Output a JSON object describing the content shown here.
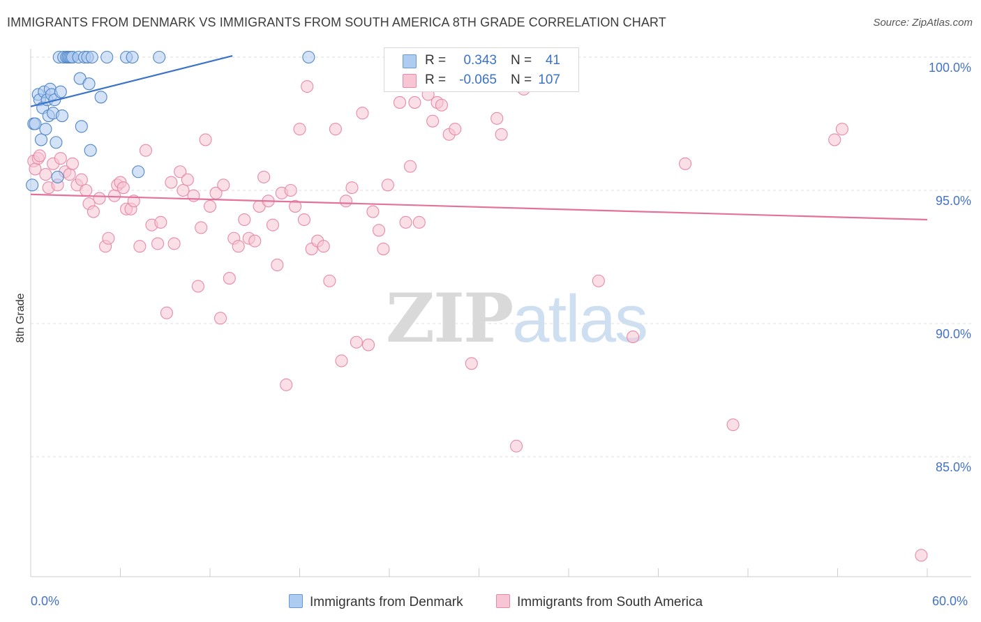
{
  "header": {
    "title": "IMMIGRANTS FROM DENMARK VS IMMIGRANTS FROM SOUTH AMERICA 8TH GRADE CORRELATION CHART",
    "source": "Source: ZipAtlas.com"
  },
  "watermark": {
    "zip": "ZIP",
    "atlas": "atlas"
  },
  "colors": {
    "blue_fill": "#aecbf0",
    "blue_stroke": "#4f86c6",
    "blue_line": "#3a72c9",
    "pink_fill": "#f7c5d4",
    "pink_stroke": "#e68aa8",
    "pink_line": "#e4719a",
    "tick_text": "#4472c4",
    "grid": "#dddddd"
  },
  "legend_stats": {
    "r_label": "R =",
    "n_label": "N =",
    "rows": [
      {
        "r": "0.343",
        "n": "41"
      },
      {
        "r": "-0.065",
        "n": "107"
      }
    ]
  },
  "chart_data": {
    "type": "scatter",
    "title": "IMMIGRANTS FROM DENMARK VS IMMIGRANTS FROM SOUTH AMERICA 8TH GRADE CORRELATION CHART",
    "xlabel": "",
    "ylabel": "8th Grade",
    "xlim": [
      0,
      60
    ],
    "ylim": [
      80.2,
      100.6
    ],
    "x_tick_labels": [
      "0.0%",
      "60.0%"
    ],
    "y_ticks": [
      85,
      90,
      95,
      100
    ],
    "y_tick_labels": [
      "85.0%",
      "90.0%",
      "95.0%",
      "100.0%"
    ],
    "legend_position": "bottom",
    "series": [
      {
        "name": "Immigrants from Denmark",
        "color": "#4f86c6",
        "trend": {
          "x": [
            0,
            13.5
          ],
          "y": [
            98.15,
            100.05
          ]
        },
        "points": [
          [
            0.1,
            95.2
          ],
          [
            0.2,
            97.5
          ],
          [
            0.3,
            97.5
          ],
          [
            0.5,
            98.6
          ],
          [
            0.6,
            98.4
          ],
          [
            0.7,
            96.9
          ],
          [
            0.8,
            98.1
          ],
          [
            0.9,
            98.7
          ],
          [
            1.0,
            97.3
          ],
          [
            1.1,
            98.4
          ],
          [
            1.2,
            97.8
          ],
          [
            1.3,
            98.8
          ],
          [
            1.4,
            98.6
          ],
          [
            1.5,
            97.9
          ],
          [
            1.6,
            98.4
          ],
          [
            1.7,
            96.8
          ],
          [
            1.8,
            95.5
          ],
          [
            1.9,
            100.0
          ],
          [
            2.0,
            98.7
          ],
          [
            2.1,
            97.8
          ],
          [
            2.2,
            100.0
          ],
          [
            2.4,
            100.0
          ],
          [
            2.5,
            100.0
          ],
          [
            2.6,
            100.0
          ],
          [
            2.7,
            100.0
          ],
          [
            2.8,
            100.0
          ],
          [
            3.2,
            100.0
          ],
          [
            3.3,
            99.2
          ],
          [
            3.4,
            97.4
          ],
          [
            3.6,
            100.0
          ],
          [
            3.8,
            100.0
          ],
          [
            3.9,
            99.0
          ],
          [
            4.0,
            96.5
          ],
          [
            4.1,
            100.0
          ],
          [
            4.7,
            98.5
          ],
          [
            5.1,
            100.0
          ],
          [
            6.4,
            100.0
          ],
          [
            6.8,
            100.0
          ],
          [
            7.2,
            95.7
          ],
          [
            8.6,
            100.0
          ],
          [
            18.6,
            100.0
          ]
        ]
      },
      {
        "name": "Immigrants from South America",
        "color": "#e68aa8",
        "trend": {
          "x": [
            0,
            60
          ],
          "y": [
            94.85,
            93.9
          ]
        },
        "points": [
          [
            0.2,
            96.1
          ],
          [
            0.3,
            95.8
          ],
          [
            0.5,
            96.2
          ],
          [
            0.6,
            96.3
          ],
          [
            1.0,
            95.6
          ],
          [
            1.2,
            95.1
          ],
          [
            1.5,
            96.0
          ],
          [
            1.8,
            95.2
          ],
          [
            2.0,
            96.2
          ],
          [
            2.3,
            95.7
          ],
          [
            2.6,
            95.6
          ],
          [
            2.8,
            96.0
          ],
          [
            3.1,
            95.2
          ],
          [
            3.4,
            95.4
          ],
          [
            3.7,
            95.0
          ],
          [
            3.9,
            94.5
          ],
          [
            4.2,
            94.2
          ],
          [
            4.6,
            94.7
          ],
          [
            5.0,
            92.9
          ],
          [
            5.2,
            93.2
          ],
          [
            5.6,
            94.8
          ],
          [
            5.8,
            95.2
          ],
          [
            6.0,
            95.3
          ],
          [
            6.2,
            95.1
          ],
          [
            6.4,
            94.3
          ],
          [
            6.7,
            94.3
          ],
          [
            6.9,
            94.6
          ],
          [
            7.3,
            92.9
          ],
          [
            7.7,
            96.5
          ],
          [
            8.1,
            93.7
          ],
          [
            8.5,
            93.0
          ],
          [
            8.7,
            93.8
          ],
          [
            9.1,
            90.4
          ],
          [
            9.4,
            95.3
          ],
          [
            9.6,
            93.0
          ],
          [
            10.0,
            95.7
          ],
          [
            10.2,
            95.0
          ],
          [
            10.5,
            95.4
          ],
          [
            10.9,
            94.8
          ],
          [
            11.2,
            91.4
          ],
          [
            11.4,
            93.6
          ],
          [
            11.7,
            96.9
          ],
          [
            12.0,
            94.4
          ],
          [
            12.4,
            94.9
          ],
          [
            12.7,
            90.2
          ],
          [
            12.9,
            95.2
          ],
          [
            13.3,
            91.7
          ],
          [
            13.6,
            93.2
          ],
          [
            13.9,
            92.9
          ],
          [
            14.3,
            93.9
          ],
          [
            14.6,
            93.2
          ],
          [
            15.0,
            93.1
          ],
          [
            15.3,
            94.4
          ],
          [
            15.6,
            95.5
          ],
          [
            15.9,
            94.6
          ],
          [
            16.2,
            93.7
          ],
          [
            16.5,
            92.2
          ],
          [
            16.8,
            94.9
          ],
          [
            17.1,
            87.7
          ],
          [
            17.4,
            95.0
          ],
          [
            17.7,
            94.4
          ],
          [
            18.0,
            97.3
          ],
          [
            18.3,
            93.9
          ],
          [
            18.5,
            98.9
          ],
          [
            18.8,
            92.8
          ],
          [
            19.2,
            93.1
          ],
          [
            19.6,
            92.9
          ],
          [
            20.0,
            91.6
          ],
          [
            20.4,
            97.3
          ],
          [
            20.8,
            88.6
          ],
          [
            21.1,
            94.6
          ],
          [
            21.5,
            95.1
          ],
          [
            21.8,
            89.3
          ],
          [
            22.2,
            97.9
          ],
          [
            22.6,
            89.2
          ],
          [
            22.9,
            94.2
          ],
          [
            23.3,
            93.5
          ],
          [
            23.6,
            92.8
          ],
          [
            23.9,
            95.2
          ],
          [
            24.3,
            100.0
          ],
          [
            24.7,
            98.3
          ],
          [
            25.1,
            93.8
          ],
          [
            25.4,
            95.9
          ],
          [
            25.7,
            98.3
          ],
          [
            26.0,
            93.8
          ],
          [
            26.6,
            98.6
          ],
          [
            26.9,
            97.6
          ],
          [
            27.2,
            98.3
          ],
          [
            27.5,
            98.2
          ],
          [
            28.0,
            97.1
          ],
          [
            28.4,
            97.3
          ],
          [
            29.0,
            100.0
          ],
          [
            29.5,
            88.5
          ],
          [
            31.2,
            97.7
          ],
          [
            31.5,
            97.1
          ],
          [
            32.0,
            99.9
          ],
          [
            32.5,
            85.4
          ],
          [
            33.0,
            98.8
          ],
          [
            34.2,
            100.0
          ],
          [
            35.5,
            99.6
          ],
          [
            38.0,
            91.6
          ],
          [
            40.3,
            89.5
          ],
          [
            43.8,
            96.0
          ],
          [
            47.0,
            86.2
          ],
          [
            53.8,
            96.9
          ],
          [
            54.3,
            97.3
          ],
          [
            59.6,
            81.3
          ]
        ]
      }
    ]
  }
}
